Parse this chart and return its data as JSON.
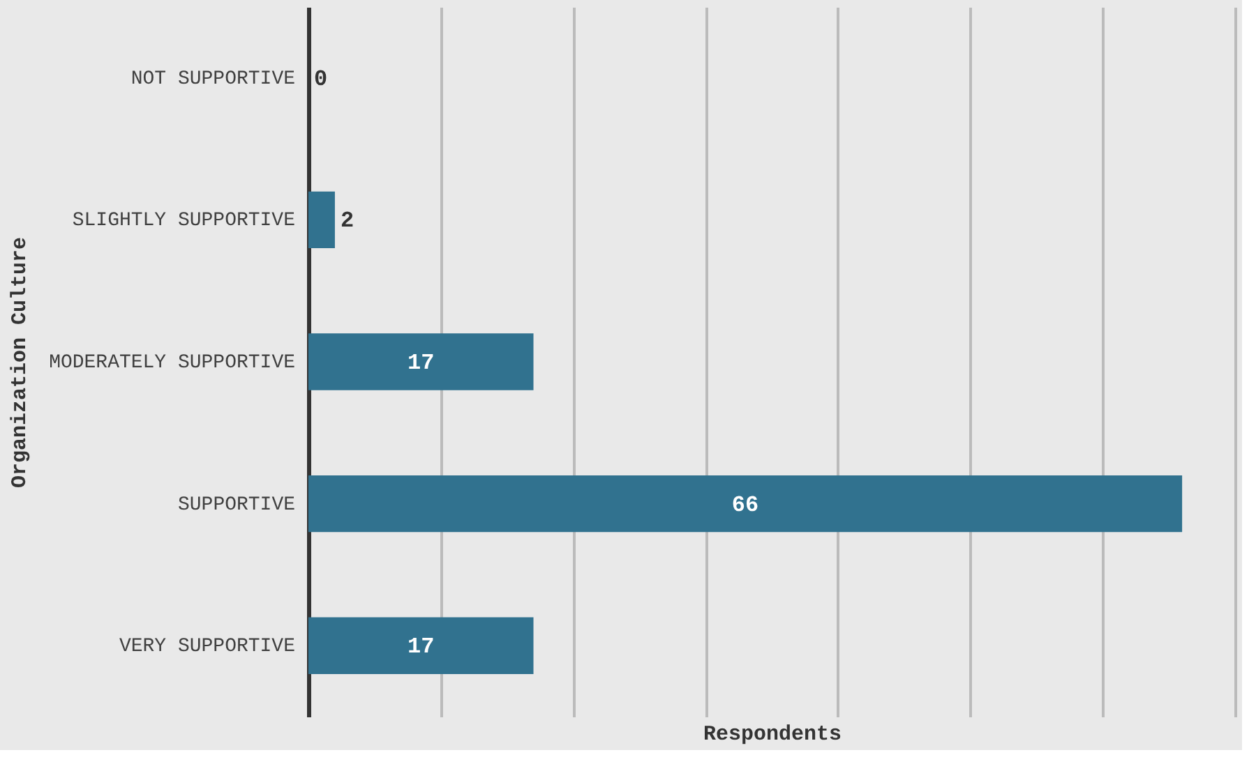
{
  "chart_data": {
    "type": "bar",
    "orientation": "horizontal",
    "xlabel": "Respondents",
    "ylabel": "Organization Culture",
    "categories": [
      "NOT SUPPORTIVE",
      "SLIGHTLY SUPPORTIVE",
      "MODERATELY SUPPORTIVE",
      "SUPPORTIVE",
      "VERY SUPPORTIVE"
    ],
    "values": [
      0,
      2,
      17,
      66,
      17
    ],
    "color": "#31728f",
    "data_labels": true,
    "xlim": [
      0,
      70
    ],
    "xticks": [
      {
        "value": 0,
        "label": null
      },
      {
        "value": 10,
        "label": null
      },
      {
        "value": 20,
        "label": null
      },
      {
        "value": 30,
        "label": null
      },
      {
        "value": 40,
        "label": null
      },
      {
        "value": 50,
        "label": null
      },
      {
        "value": 60,
        "label": null
      },
      {
        "value": 70,
        "label": null
      }
    ],
    "grid": "x",
    "tick_labels": "y"
  }
}
